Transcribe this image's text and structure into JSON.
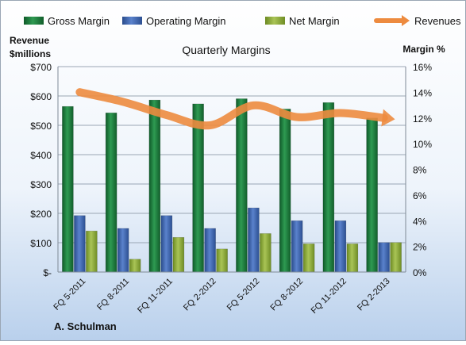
{
  "chart_data": {
    "type": "bar",
    "title": "Quarterly Margins",
    "left_axis_title_line1": "Revenue",
    "left_axis_title_line2": "$millions",
    "right_axis_title": "Margin %",
    "credit": "A. Schulman",
    "categories": [
      "FQ 5-2011",
      "FQ 8-2011",
      "FQ 11-2011",
      "FQ 2-2012",
      "FQ 5-2012",
      "FQ 8-2012",
      "FQ 11-2012",
      "FQ 2-2013"
    ],
    "left_axis": {
      "min": 0,
      "max": 700,
      "step": 100,
      "tick_labels": [
        "$-",
        "$100",
        "$200",
        "$300",
        "$400",
        "$500",
        "$600",
        "$700"
      ]
    },
    "right_axis": {
      "min": 0,
      "max": 16,
      "step": 2,
      "tick_labels": [
        "0%",
        "2%",
        "4%",
        "6%",
        "8%",
        "10%",
        "12%",
        "14%",
        "16%"
      ]
    },
    "grid": true,
    "legend_position": "top",
    "series": [
      {
        "name": "Gross Margin",
        "kind": "bar",
        "axis": "right",
        "color": "#1e7a3c",
        "values": [
          12.9,
          12.4,
          13.4,
          13.1,
          13.5,
          12.7,
          13.2,
          12.0
        ]
      },
      {
        "name": "Operating Margin",
        "kind": "bar",
        "axis": "right",
        "color": "#3c64b4",
        "values": [
          4.4,
          3.4,
          4.4,
          3.4,
          5.0,
          4.0,
          4.0,
          2.3
        ]
      },
      {
        "name": "Net Margin",
        "kind": "bar",
        "axis": "right",
        "color": "#8fac3a",
        "values": [
          3.2,
          1.0,
          2.7,
          1.8,
          3.0,
          2.2,
          2.2,
          2.3
        ]
      },
      {
        "name": "Revenues",
        "kind": "line",
        "axis": "left",
        "color": "#ed8b3f",
        "values": [
          613,
          580,
          535,
          500,
          568,
          528,
          542,
          525
        ]
      }
    ]
  }
}
